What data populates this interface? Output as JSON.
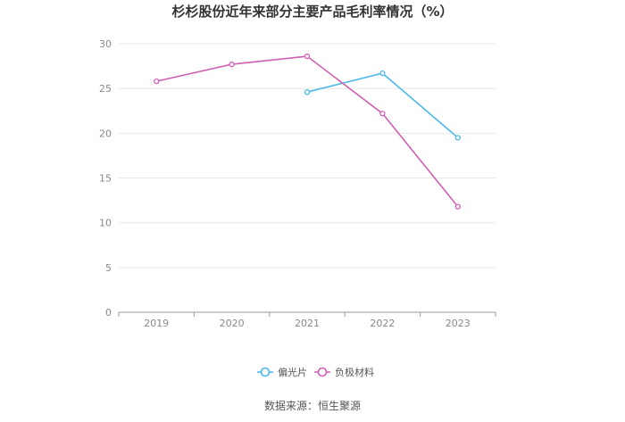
{
  "source_text": "数据来源：恒生聚源",
  "chart_data": {
    "type": "line",
    "title": "杉杉股份近年来部分主要产品毛利率情况（%）",
    "xlabel": "",
    "ylabel": "",
    "categories": [
      "2019",
      "2020",
      "2021",
      "2022",
      "2023"
    ],
    "ylim": [
      0,
      30
    ],
    "yticks": [
      0,
      5,
      10,
      15,
      20,
      25,
      30
    ],
    "grid": true,
    "legend_position": "bottom-center",
    "series": [
      {
        "name": "偏光片",
        "color": "#4ab8e8",
        "values": [
          null,
          null,
          24.6,
          26.7,
          19.5
        ]
      },
      {
        "name": "负极材料",
        "color": "#d05fb3",
        "values": [
          25.8,
          27.7,
          28.6,
          22.2,
          11.8
        ]
      }
    ]
  }
}
